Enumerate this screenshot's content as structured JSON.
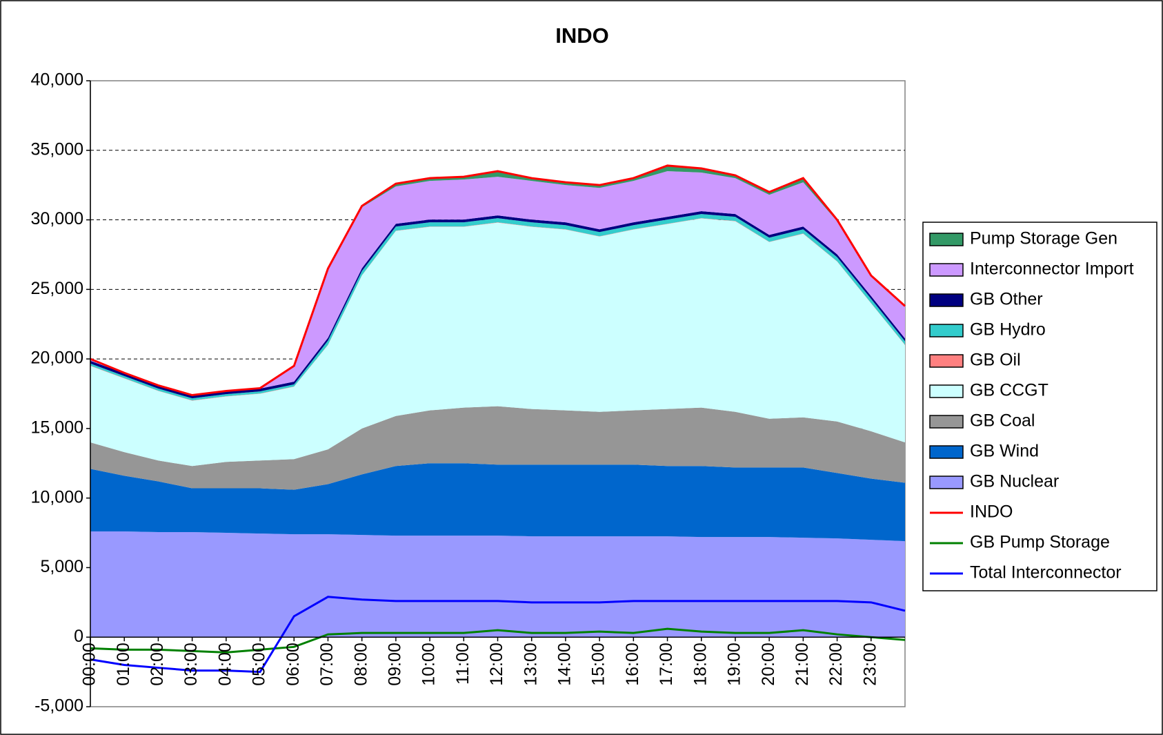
{
  "chart_data": {
    "type": "area",
    "title": "INDO",
    "x": [
      0,
      1,
      2,
      3,
      4,
      5,
      6,
      7,
      8,
      9,
      10,
      11,
      12,
      13,
      14,
      15,
      16,
      17,
      18,
      19,
      20,
      21,
      22,
      23,
      24
    ],
    "xlim": [
      0,
      24
    ],
    "xticks": [
      {
        "value": 0,
        "label": "00:00"
      },
      {
        "value": 1,
        "label": "01:00"
      },
      {
        "value": 2,
        "label": "02:00"
      },
      {
        "value": 3,
        "label": "03:00"
      },
      {
        "value": 4,
        "label": "04:00"
      },
      {
        "value": 5,
        "label": "05:00"
      },
      {
        "value": 6,
        "label": "06:00"
      },
      {
        "value": 7,
        "label": "07:00"
      },
      {
        "value": 8,
        "label": "08:00"
      },
      {
        "value": 9,
        "label": "09:00"
      },
      {
        "value": 10,
        "label": "10:00"
      },
      {
        "value": 11,
        "label": "11:00"
      },
      {
        "value": 12,
        "label": "12:00"
      },
      {
        "value": 13,
        "label": "13:00"
      },
      {
        "value": 14,
        "label": "14:00"
      },
      {
        "value": 15,
        "label": "15:00"
      },
      {
        "value": 16,
        "label": "16:00"
      },
      {
        "value": 17,
        "label": "17:00"
      },
      {
        "value": 18,
        "label": "18:00"
      },
      {
        "value": 19,
        "label": "19:00"
      },
      {
        "value": 20,
        "label": "20:00"
      },
      {
        "value": 21,
        "label": "21:00"
      },
      {
        "value": 22,
        "label": "22:00"
      },
      {
        "value": 23,
        "label": "23:00"
      }
    ],
    "ylim": [
      -5000,
      40000
    ],
    "yticks": [
      {
        "value": -5000,
        "label": "-5,000"
      },
      0,
      {
        "value": 5000,
        "label": "5,000"
      },
      {
        "value": 10000,
        "label": "10,000"
      },
      {
        "value": 15000,
        "label": "15,000"
      },
      {
        "value": 20000,
        "label": "20,000"
      },
      {
        "value": 25000,
        "label": "25,000"
      },
      {
        "value": 30000,
        "label": "30,000"
      },
      {
        "value": 35000,
        "label": "35,000"
      },
      {
        "value": 40000,
        "label": "40,000"
      }
    ],
    "grid": true,
    "legend": "right",
    "series": [
      {
        "name": "GB Nuclear",
        "kind": "area",
        "color": "#9999ff",
        "values": [
          7600,
          7600,
          7550,
          7550,
          7500,
          7450,
          7400,
          7400,
          7350,
          7300,
          7300,
          7300,
          7300,
          7250,
          7250,
          7250,
          7250,
          7250,
          7200,
          7200,
          7200,
          7150,
          7100,
          7000,
          6900
        ]
      },
      {
        "name": "GB Wind",
        "kind": "area",
        "color": "#0066cc",
        "values": [
          4500,
          4000,
          3650,
          3150,
          3200,
          3250,
          3200,
          3600,
          4350,
          5000,
          5200,
          5200,
          5100,
          5150,
          5150,
          5150,
          5150,
          5050,
          5100,
          5000,
          5000,
          5050,
          4700,
          4400,
          4200
        ]
      },
      {
        "name": "GB Coal",
        "kind": "area",
        "color": "#969696",
        "values": [
          1900,
          1700,
          1500,
          1600,
          1900,
          2000,
          2200,
          2500,
          3300,
          3600,
          3800,
          4000,
          4200,
          4000,
          3900,
          3800,
          3900,
          4100,
          4200,
          4000,
          3500,
          3600,
          3700,
          3400,
          2900
        ]
      },
      {
        "name": "GB CCGT",
        "kind": "area",
        "color": "#ccffff",
        "values": [
          5500,
          5300,
          5000,
          4700,
          4700,
          4800,
          5200,
          7500,
          11000,
          13300,
          13200,
          13000,
          13200,
          13100,
          13000,
          12600,
          13000,
          13300,
          13600,
          13700,
          12700,
          13200,
          11500,
          9200,
          7000
        ]
      },
      {
        "name": "GB Oil",
        "kind": "area",
        "color": "#ff8080",
        "values": [
          20,
          20,
          20,
          20,
          20,
          20,
          20,
          20,
          20,
          20,
          20,
          20,
          20,
          20,
          20,
          20,
          20,
          20,
          20,
          20,
          20,
          20,
          20,
          20,
          20
        ]
      },
      {
        "name": "GB Hydro",
        "kind": "area",
        "color": "#33cccc",
        "values": [
          150,
          150,
          150,
          150,
          150,
          150,
          150,
          300,
          300,
          300,
          300,
          300,
          300,
          300,
          300,
          300,
          300,
          300,
          300,
          300,
          300,
          300,
          300,
          300,
          250
        ]
      },
      {
        "name": "GB Other",
        "kind": "area",
        "color": "#000080",
        "values": [
          200,
          200,
          200,
          200,
          200,
          200,
          200,
          200,
          200,
          200,
          200,
          200,
          200,
          200,
          200,
          200,
          200,
          200,
          200,
          200,
          200,
          200,
          200,
          200,
          200
        ]
      },
      {
        "name": "Interconnector Import",
        "kind": "area",
        "color": "#cc99ff",
        "values": [
          130,
          30,
          30,
          30,
          30,
          30,
          1130,
          4980,
          4380,
          2680,
          2780,
          2880,
          2780,
          2780,
          2680,
          2980,
          2980,
          3280,
          2780,
          2580,
          2880,
          3180,
          2380,
          1480,
          2330
        ]
      },
      {
        "name": "Pump Storage Gen",
        "kind": "area",
        "color": "#339966",
        "values": [
          0,
          0,
          0,
          0,
          0,
          0,
          0,
          0,
          100,
          200,
          200,
          200,
          400,
          200,
          200,
          200,
          200,
          400,
          300,
          200,
          200,
          300,
          100,
          0,
          0
        ]
      },
      {
        "name": "INDO",
        "kind": "line",
        "color": "#ff0000",
        "values": [
          20000,
          19000,
          18100,
          17400,
          17700,
          17900,
          19500,
          26500,
          31000,
          32600,
          33000,
          33100,
          33500,
          33000,
          32700,
          32500,
          33000,
          33900,
          33700,
          33200,
          32000,
          33000,
          30000,
          26000,
          23800
        ]
      },
      {
        "name": "GB Pump Storage",
        "kind": "line",
        "color": "#008000",
        "values": [
          -800,
          -900,
          -900,
          -1000,
          -1100,
          -900,
          -700,
          200,
          300,
          300,
          300,
          300,
          500,
          300,
          300,
          400,
          300,
          600,
          400,
          300,
          300,
          500,
          200,
          0,
          -200
        ]
      },
      {
        "name": "Total Interconnector",
        "kind": "line",
        "color": "#0000ff",
        "values": [
          -1600,
          -2000,
          -2200,
          -2400,
          -2400,
          -2500,
          1500,
          2900,
          2700,
          2600,
          2600,
          2600,
          2600,
          2500,
          2500,
          2500,
          2600,
          2600,
          2600,
          2600,
          2600,
          2600,
          2600,
          2500,
          1900
        ]
      }
    ]
  }
}
